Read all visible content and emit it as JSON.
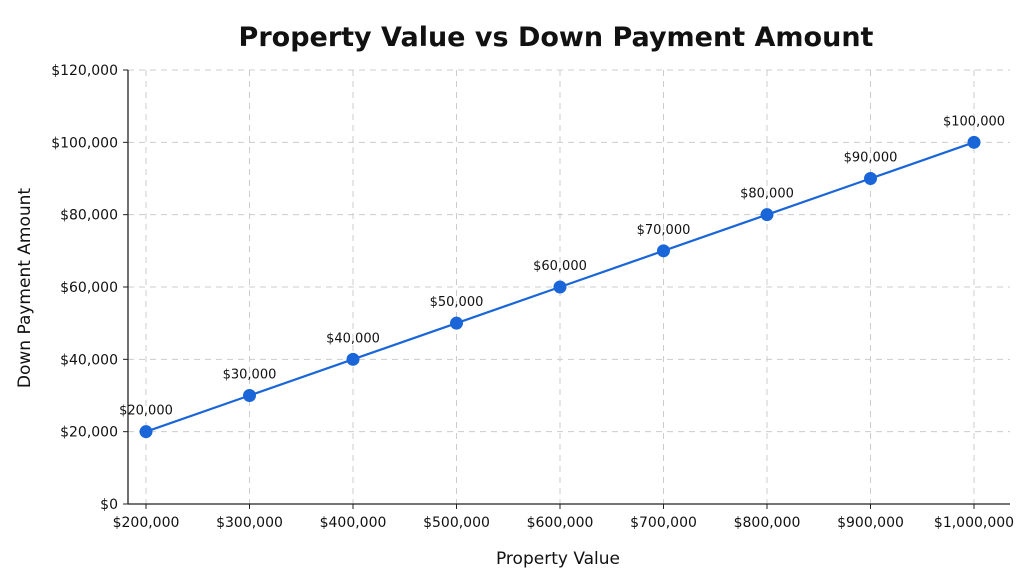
{
  "chart_data": {
    "type": "line",
    "title": "Property Value vs Down Payment Amount",
    "xlabel": "Property Value",
    "ylabel": "Down Payment Amount",
    "x": [
      200000,
      300000,
      400000,
      500000,
      600000,
      700000,
      800000,
      900000,
      1000000
    ],
    "x_tick_labels": [
      "$200,000",
      "$300,000",
      "$400,000",
      "$500,000",
      "$600,000",
      "$700,000",
      "$800,000",
      "$900,000",
      "$1,000,000"
    ],
    "y_ticks": [
      0,
      20000,
      40000,
      60000,
      80000,
      100000,
      120000
    ],
    "y_tick_labels": [
      "$0",
      "$20,000",
      "$40,000",
      "$60,000",
      "$80,000",
      "$100,000",
      "$120,000"
    ],
    "xlim": [
      200000,
      1000000
    ],
    "ylim": [
      0,
      120000
    ],
    "grid": true,
    "series": [
      {
        "values": [
          20000,
          30000,
          40000,
          50000,
          60000,
          70000,
          80000,
          90000,
          100000
        ],
        "data_labels": [
          "$20,000",
          "$30,000",
          "$40,000",
          "$50,000",
          "$60,000",
          "$70,000",
          "$80,000",
          "$90,000",
          "$100,000"
        ],
        "color": "#1a66d9"
      }
    ]
  }
}
